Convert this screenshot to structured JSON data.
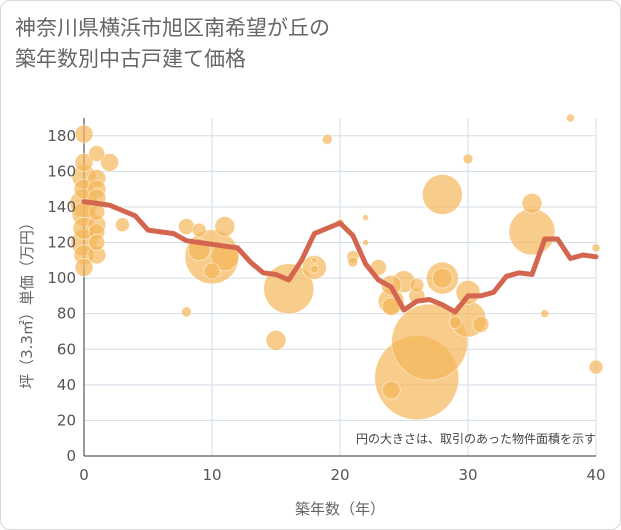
{
  "title_lines": [
    "神奈川県横浜市旭区南希望が丘の",
    "築年数別中古戸建て価格"
  ],
  "chart_data": {
    "type": "scatter",
    "title": "神奈川県横浜市旭区南希望が丘の築年数別中古戸建て価格",
    "xlabel": "築年数（年）",
    "ylabel": "坪（3.3㎡）単価（万円）",
    "xlim": [
      0,
      40
    ],
    "ylim": [
      0,
      190
    ],
    "x_ticks": [
      0,
      10,
      20,
      30,
      40
    ],
    "y_ticks": [
      0,
      20,
      40,
      60,
      80,
      100,
      120,
      140,
      160,
      180
    ],
    "grid": true,
    "note": "円の大きさは、取引のあった物件面積を示す",
    "colors": {
      "bubble": "#f5b75a",
      "line": "#d4664f",
      "grid": "#d3dde6"
    },
    "bubbles": [
      {
        "x": 0,
        "y": 181,
        "size": 9
      },
      {
        "x": 0,
        "y": 165,
        "size": 9
      },
      {
        "x": 0,
        "y": 157,
        "size": 12
      },
      {
        "x": 0,
        "y": 150,
        "size": 10
      },
      {
        "x": 0,
        "y": 142,
        "size": 14
      },
      {
        "x": 0,
        "y": 136,
        "size": 12
      },
      {
        "x": 0,
        "y": 128,
        "size": 11
      },
      {
        "x": 0,
        "y": 120,
        "size": 13
      },
      {
        "x": 0,
        "y": 113,
        "size": 10
      },
      {
        "x": 0,
        "y": 106,
        "size": 9
      },
      {
        "x": 1,
        "y": 170,
        "size": 8
      },
      {
        "x": 1,
        "y": 156,
        "size": 9
      },
      {
        "x": 1,
        "y": 150,
        "size": 9
      },
      {
        "x": 1,
        "y": 145,
        "size": 9
      },
      {
        "x": 1,
        "y": 137,
        "size": 8
      },
      {
        "x": 1,
        "y": 130,
        "size": 9
      },
      {
        "x": 1,
        "y": 126,
        "size": 8
      },
      {
        "x": 1,
        "y": 120,
        "size": 8
      },
      {
        "x": 1,
        "y": 113,
        "size": 9
      },
      {
        "x": 2,
        "y": 165,
        "size": 9
      },
      {
        "x": 3,
        "y": 130,
        "size": 7
      },
      {
        "x": 8,
        "y": 129,
        "size": 8
      },
      {
        "x": 8,
        "y": 81,
        "size": 5
      },
      {
        "x": 9,
        "y": 127,
        "size": 7
      },
      {
        "x": 9,
        "y": 116,
        "size": 11
      },
      {
        "x": 10,
        "y": 112,
        "size": 27
      },
      {
        "x": 10,
        "y": 104,
        "size": 8
      },
      {
        "x": 11,
        "y": 129,
        "size": 10
      },
      {
        "x": 11,
        "y": 112,
        "size": 14
      },
      {
        "x": 15,
        "y": 65,
        "size": 10
      },
      {
        "x": 16,
        "y": 94,
        "size": 25
      },
      {
        "x": 18,
        "y": 106,
        "size": 12
      },
      {
        "x": 18,
        "y": 110,
        "size": 3
      },
      {
        "x": 18,
        "y": 105,
        "size": 4
      },
      {
        "x": 19,
        "y": 178,
        "size": 5
      },
      {
        "x": 20,
        "y": 131,
        "size": 4
      },
      {
        "x": 21,
        "y": 112,
        "size": 6
      },
      {
        "x": 21,
        "y": 109,
        "size": 5
      },
      {
        "x": 22,
        "y": 134,
        "size": 3
      },
      {
        "x": 22,
        "y": 120,
        "size": 3
      },
      {
        "x": 23,
        "y": 106,
        "size": 8
      },
      {
        "x": 24,
        "y": 37,
        "size": 9
      },
      {
        "x": 24,
        "y": 96,
        "size": 10
      },
      {
        "x": 24,
        "y": 87,
        "size": 13
      },
      {
        "x": 24,
        "y": 84,
        "size": 9
      },
      {
        "x": 25,
        "y": 98,
        "size": 11
      },
      {
        "x": 26,
        "y": 96,
        "size": 7
      },
      {
        "x": 26,
        "y": 90,
        "size": 8
      },
      {
        "x": 26,
        "y": 44,
        "size": 42
      },
      {
        "x": 27,
        "y": 64,
        "size": 38
      },
      {
        "x": 28,
        "y": 147,
        "size": 20
      },
      {
        "x": 28,
        "y": 100,
        "size": 10
      },
      {
        "x": 28,
        "y": 100,
        "size": 16
      },
      {
        "x": 29,
        "y": 75,
        "size": 6
      },
      {
        "x": 30,
        "y": 167,
        "size": 5
      },
      {
        "x": 30,
        "y": 92,
        "size": 12
      },
      {
        "x": 30,
        "y": 77,
        "size": 18
      },
      {
        "x": 31,
        "y": 74,
        "size": 8
      },
      {
        "x": 35,
        "y": 126,
        "size": 23
      },
      {
        "x": 35,
        "y": 142,
        "size": 10
      },
      {
        "x": 36,
        "y": 80,
        "size": 4
      },
      {
        "x": 38,
        "y": 190,
        "size": 4
      },
      {
        "x": 40,
        "y": 117,
        "size": 4
      },
      {
        "x": 40,
        "y": 50,
        "size": 7
      }
    ],
    "line": {
      "x": [
        0,
        1,
        2,
        3,
        4,
        5,
        6,
        7,
        8,
        9,
        10,
        11,
        12,
        13,
        14,
        15,
        16,
        17,
        18,
        19,
        20,
        21,
        22,
        23,
        24,
        25,
        26,
        27,
        28,
        29,
        30,
        31,
        32,
        33,
        34,
        35,
        36,
        37,
        38,
        39,
        40
      ],
      "y": [
        143,
        142,
        141,
        138,
        135,
        127,
        126,
        125,
        121,
        120,
        119,
        118,
        117,
        109,
        103,
        102,
        99,
        110,
        125,
        128,
        131,
        124,
        108,
        99,
        95,
        82,
        87,
        88,
        85,
        81,
        90,
        90,
        92,
        101,
        103,
        102,
        122,
        122,
        111,
        113,
        112
      ]
    }
  }
}
